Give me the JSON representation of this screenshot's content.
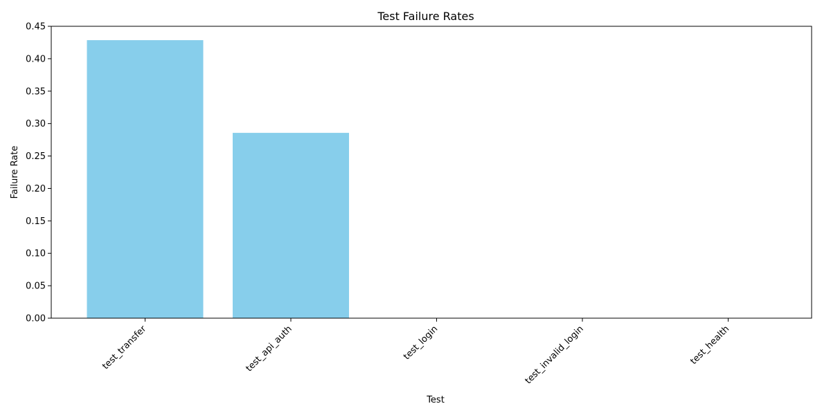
{
  "chart_data": {
    "type": "bar",
    "title": "Test Failure Rates",
    "xlabel": "Test",
    "ylabel": "Failure Rate",
    "categories": [
      "test_transfer",
      "test_api_auth",
      "test_login",
      "test_invalid_login",
      "test_health"
    ],
    "values": [
      0.4286,
      0.2857,
      0.0,
      0.0,
      0.0
    ],
    "ylim": [
      0,
      0.45
    ],
    "yticks": [
      "0.00",
      "0.05",
      "0.10",
      "0.15",
      "0.20",
      "0.25",
      "0.30",
      "0.35",
      "0.40",
      "0.45"
    ],
    "bar_color": "#87CEEB",
    "grid": false,
    "legend": "none"
  }
}
